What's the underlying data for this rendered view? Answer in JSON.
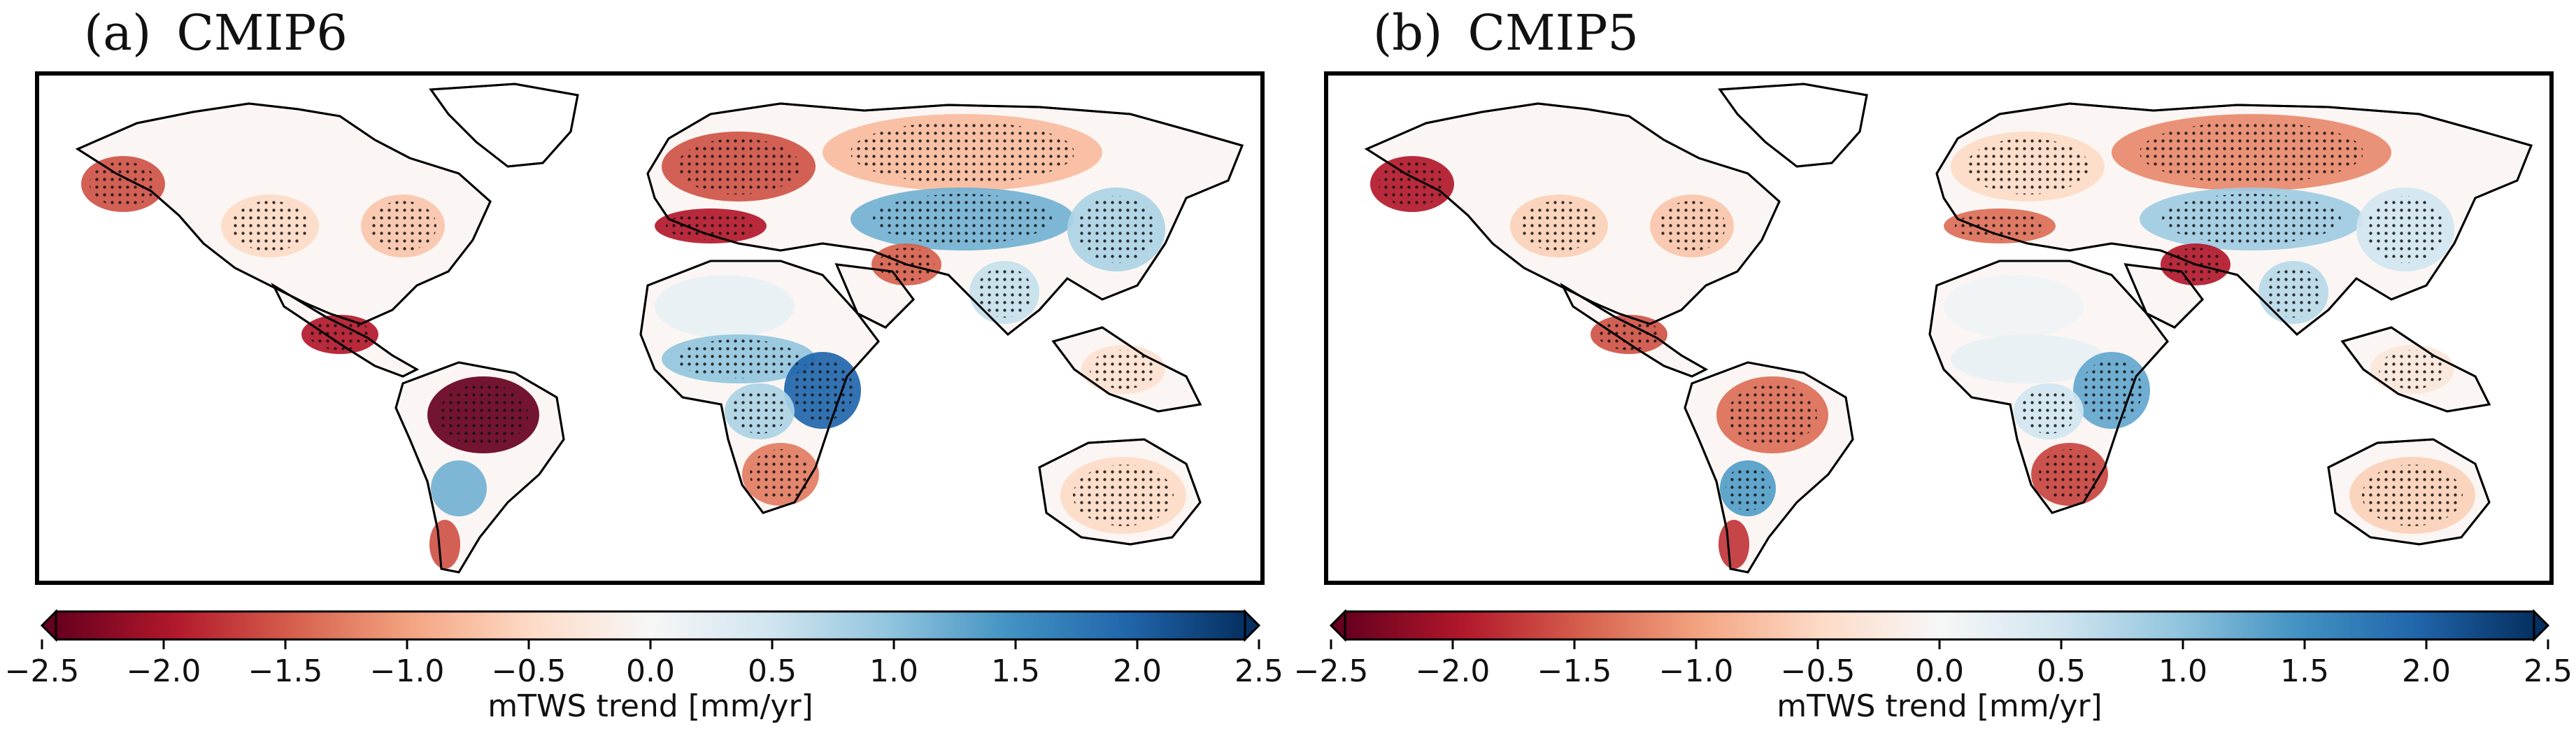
{
  "colorbar": {
    "ticks": [
      "−2.5",
      "−2.0",
      "−1.5",
      "−1.0",
      "−0.5",
      "0.0",
      "0.5",
      "1.0",
      "1.5",
      "2.0",
      "2.5"
    ],
    "label": "mTWS trend [mm/yr]",
    "vmin": -2.5,
    "vmax": 2.5,
    "colors": [
      "#67001f",
      "#b2182b",
      "#d6604d",
      "#f4a582",
      "#fddbc7",
      "#f7f7f7",
      "#d1e5f0",
      "#92c5de",
      "#4393c3",
      "#2166ac",
      "#053061"
    ],
    "extend": "both"
  },
  "panels": [
    {
      "letter": "(a)",
      "model": "CMIP6",
      "regions": [
        {
          "name": "western-north-america",
          "value": -1.6,
          "stippled": true
        },
        {
          "name": "central-north-america",
          "value": -0.5,
          "stippled": true
        },
        {
          "name": "eastern-north-america",
          "value": -0.7,
          "stippled": true
        },
        {
          "name": "central-america",
          "value": -2.0,
          "stippled": true
        },
        {
          "name": "amazon",
          "value": -2.5,
          "stippled": true
        },
        {
          "name": "southern-south-america",
          "value": 1.2,
          "stippled": false
        },
        {
          "name": "patagonia",
          "value": -1.6,
          "stippled": false
        },
        {
          "name": "europe",
          "value": -1.6,
          "stippled": true
        },
        {
          "name": "mediterranean",
          "value": -2.0,
          "stippled": true
        },
        {
          "name": "sahara",
          "value": 0.2,
          "stippled": false
        },
        {
          "name": "sahel",
          "value": 1.0,
          "stippled": true
        },
        {
          "name": "east-africa",
          "value": 2.0,
          "stippled": true
        },
        {
          "name": "central-africa",
          "value": 0.8,
          "stippled": true
        },
        {
          "name": "southern-africa",
          "value": -1.3,
          "stippled": true
        },
        {
          "name": "northern-eurasia",
          "value": -0.8,
          "stippled": true
        },
        {
          "name": "central-asia",
          "value": 1.2,
          "stippled": true
        },
        {
          "name": "middle-east",
          "value": -1.5,
          "stippled": true
        },
        {
          "name": "south-asia",
          "value": 0.6,
          "stippled": true
        },
        {
          "name": "east-asia",
          "value": 0.8,
          "stippled": true
        },
        {
          "name": "southeast-asia",
          "value": -0.4,
          "stippled": true
        },
        {
          "name": "australia",
          "value": -0.5,
          "stippled": true
        }
      ]
    },
    {
      "letter": "(b)",
      "model": "CMIP5",
      "regions": [
        {
          "name": "western-north-america",
          "value": -2.0,
          "stippled": true
        },
        {
          "name": "central-north-america",
          "value": -0.6,
          "stippled": true
        },
        {
          "name": "eastern-north-america",
          "value": -0.7,
          "stippled": true
        },
        {
          "name": "central-america",
          "value": -1.6,
          "stippled": true
        },
        {
          "name": "amazon",
          "value": -1.4,
          "stippled": true
        },
        {
          "name": "southern-south-america",
          "value": 1.4,
          "stippled": true
        },
        {
          "name": "patagonia",
          "value": -1.8,
          "stippled": false
        },
        {
          "name": "europe",
          "value": -0.5,
          "stippled": true
        },
        {
          "name": "mediterranean",
          "value": -1.4,
          "stippled": true
        },
        {
          "name": "sahara",
          "value": 0.1,
          "stippled": false
        },
        {
          "name": "sahel",
          "value": 0.2,
          "stippled": false
        },
        {
          "name": "east-africa",
          "value": 1.3,
          "stippled": true
        },
        {
          "name": "central-africa",
          "value": 0.5,
          "stippled": true
        },
        {
          "name": "southern-africa",
          "value": -1.7,
          "stippled": true
        },
        {
          "name": "northern-eurasia",
          "value": -1.2,
          "stippled": true
        },
        {
          "name": "central-asia",
          "value": 0.9,
          "stippled": true
        },
        {
          "name": "middle-east",
          "value": -2.0,
          "stippled": true
        },
        {
          "name": "south-asia",
          "value": 0.7,
          "stippled": true
        },
        {
          "name": "east-asia",
          "value": 0.5,
          "stippled": true
        },
        {
          "name": "southeast-asia",
          "value": -0.3,
          "stippled": true
        },
        {
          "name": "australia",
          "value": -0.6,
          "stippled": true
        }
      ]
    }
  ]
}
